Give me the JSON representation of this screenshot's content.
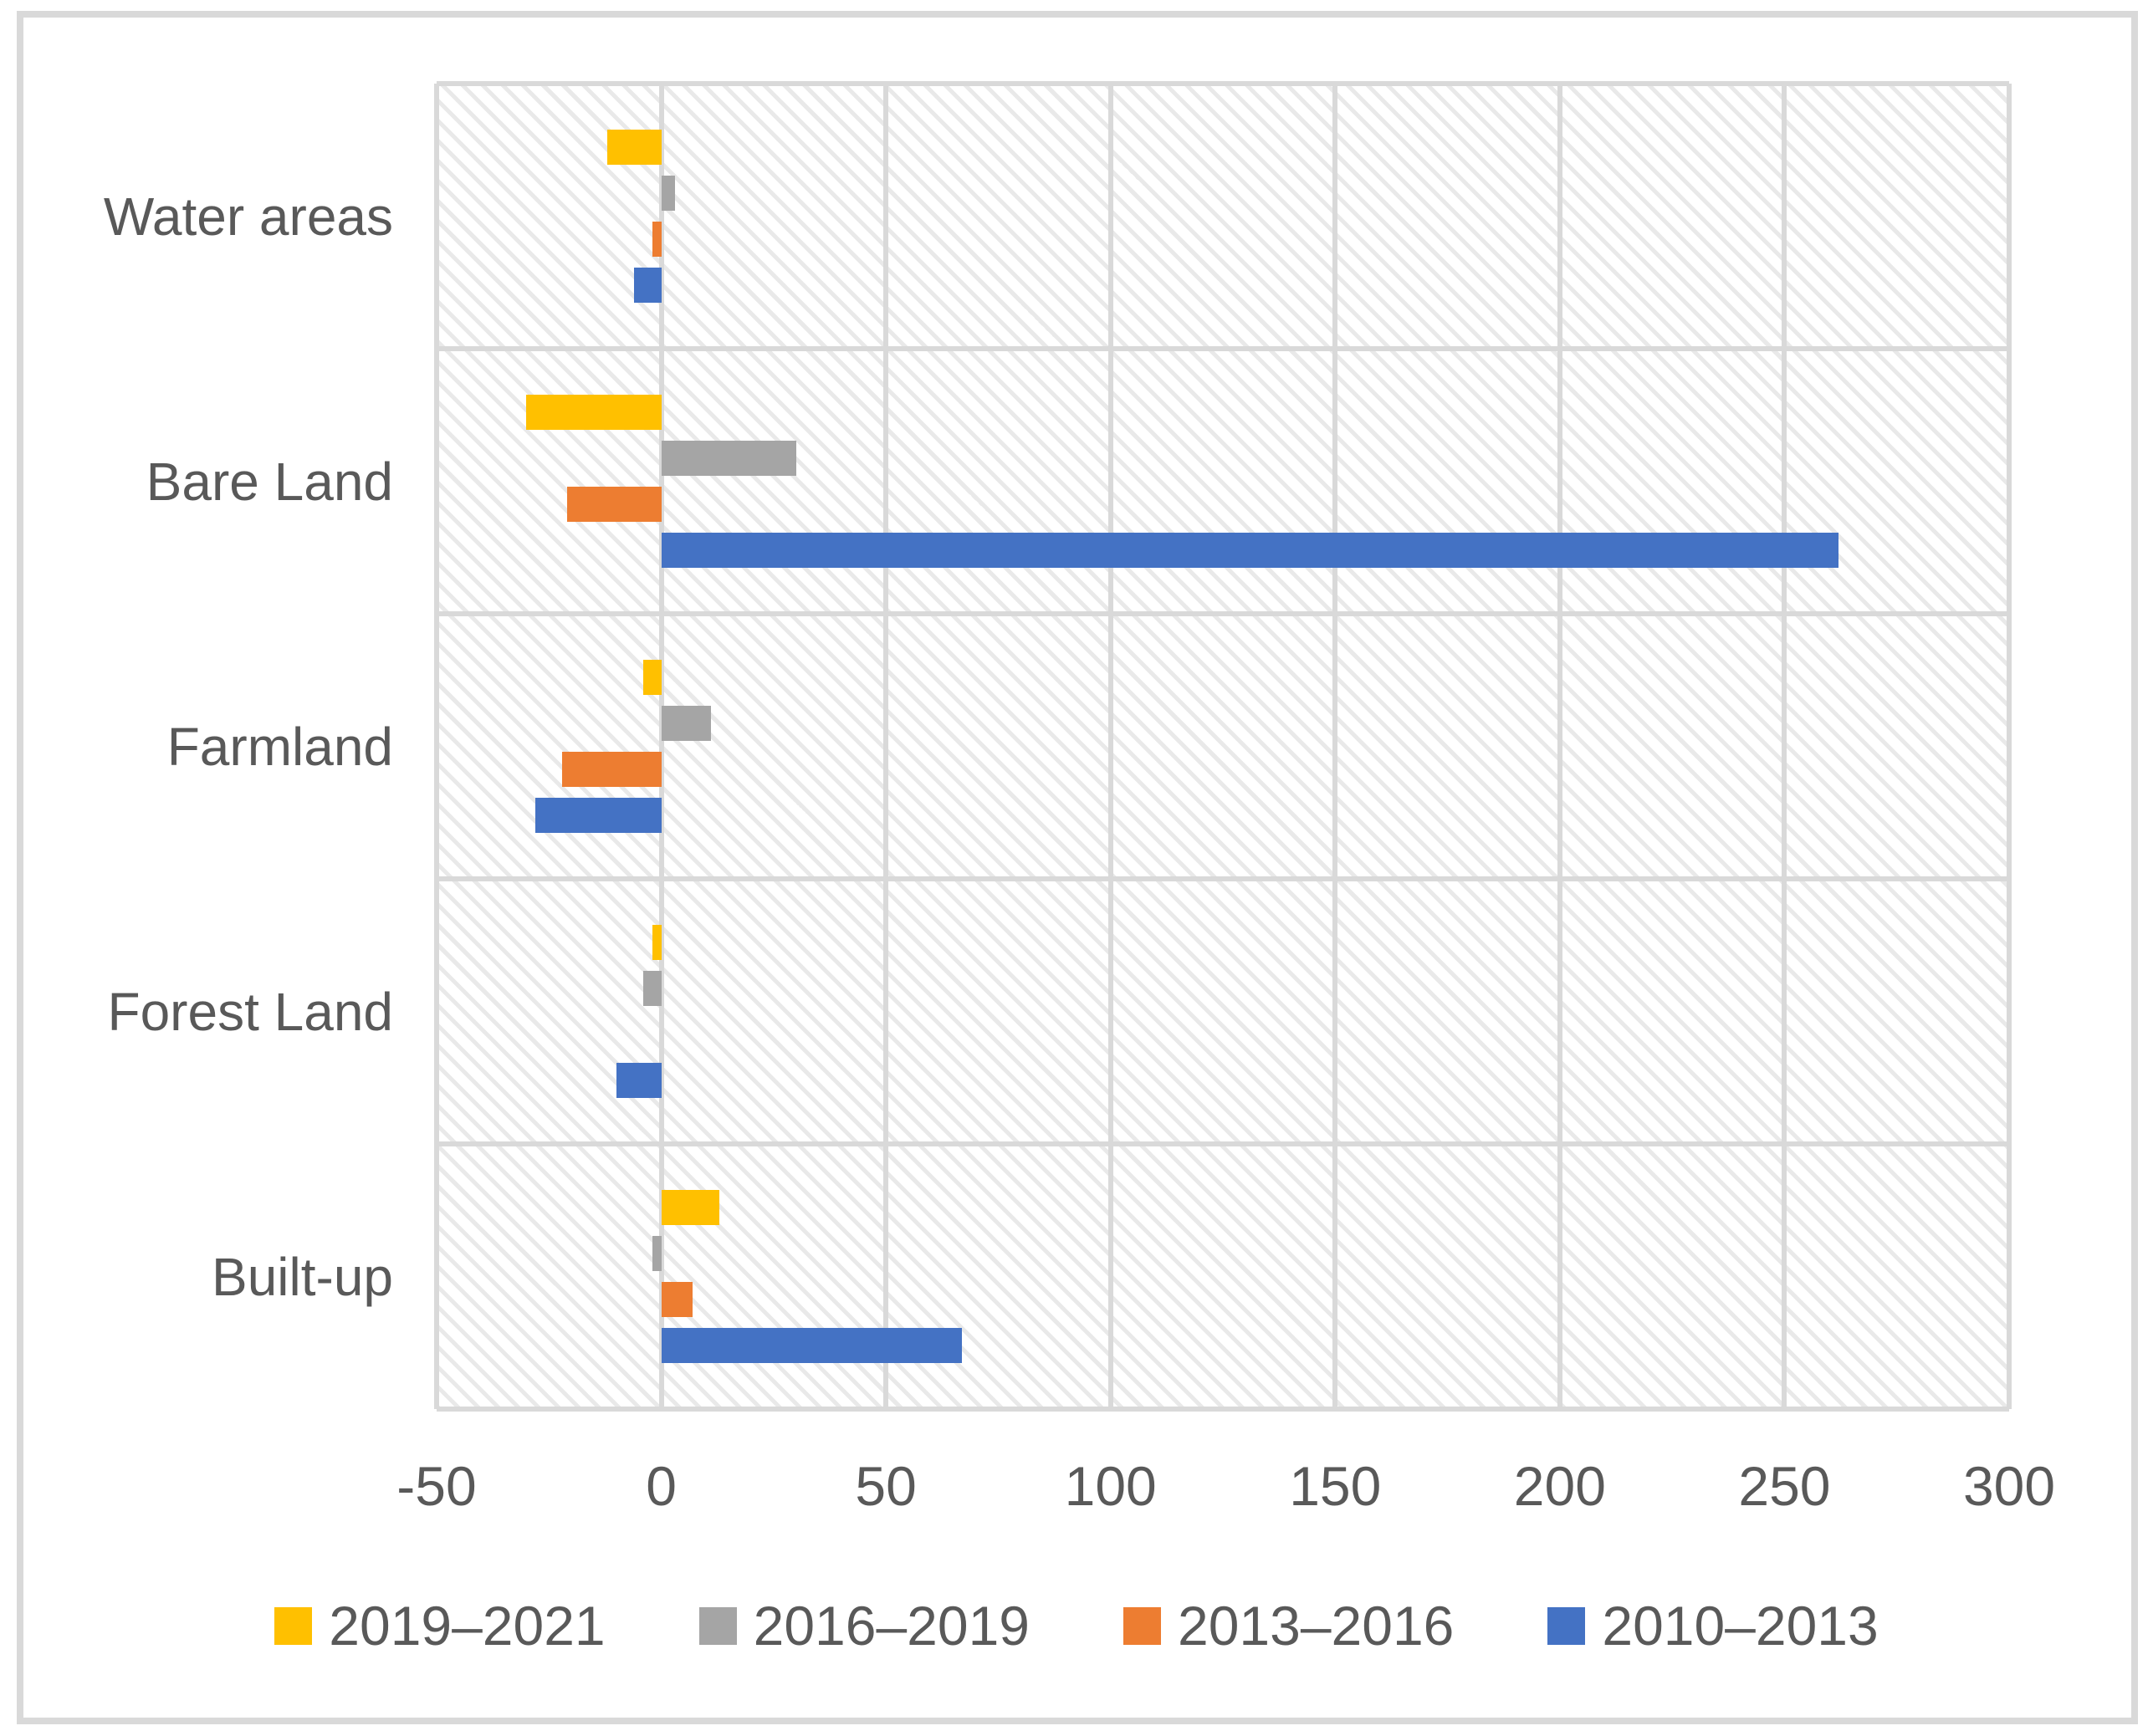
{
  "chart_data": {
    "type": "bar",
    "orientation": "horizontal",
    "title": "",
    "xlabel": "",
    "ylabel": "",
    "categories": [
      "Water areas",
      "Bare Land",
      "Farmland",
      "Forest Land",
      "Built-up"
    ],
    "series": [
      {
        "name": "2019–2021",
        "color": "#FFC000",
        "values": [
          -12,
          -30,
          -4,
          -2,
          13
        ]
      },
      {
        "name": "2016–2019",
        "color": "#A5A5A5",
        "values": [
          3,
          30,
          11,
          -4,
          -2
        ]
      },
      {
        "name": "2013–2016",
        "color": "#ED7D31",
        "values": [
          -2,
          -21,
          -22,
          0,
          7
        ]
      },
      {
        "name": "2010–2013",
        "color": "#4472C4",
        "values": [
          -6,
          262,
          -28,
          -10,
          67
        ]
      }
    ],
    "xlim": [
      -50,
      300
    ],
    "xticks": [
      -50,
      0,
      50,
      100,
      150,
      200,
      250,
      300
    ],
    "grid": true,
    "legend_position": "bottom",
    "plot_background": "light-diagonal-hatch"
  },
  "style": {
    "gridline_color": "#D9D9D9",
    "figure_border_color": "#D9D9D9",
    "text_color": "#595959",
    "hatch_color": "#E9E9E9",
    "background_color": "#FFFFFF"
  }
}
